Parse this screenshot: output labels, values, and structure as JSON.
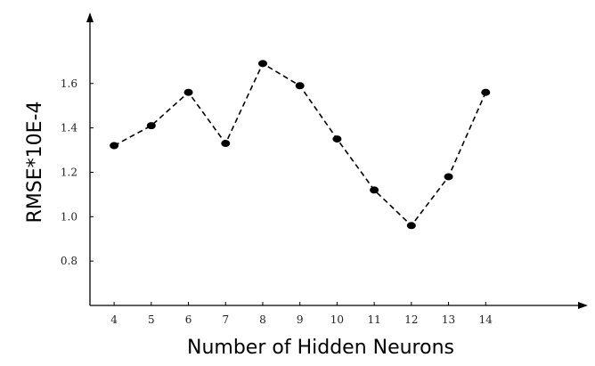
{
  "chart_data": {
    "type": "line",
    "title": "",
    "xlabel": "Number of Hidden Neurons",
    "ylabel": "RMSE*10E-4",
    "x": [
      4,
      5,
      6,
      7,
      8,
      9,
      10,
      11,
      12,
      13,
      14
    ],
    "series": [
      {
        "values": [
          1.32,
          1.41,
          1.56,
          1.33,
          1.69,
          1.59,
          1.35,
          1.12,
          0.96,
          1.18,
          1.56
        ]
      }
    ],
    "x_ticks": [
      "4",
      "5",
      "6",
      "7",
      "8",
      "9",
      "10",
      "11",
      "12",
      "13",
      "14"
    ],
    "y_ticks": [
      "0.8",
      "1.0",
      "1.2",
      "1.4",
      "1.6"
    ],
    "y_tick_values": [
      0.8,
      1.0,
      1.2,
      1.4,
      1.6
    ],
    "xlim": [
      3.35,
      16.75
    ],
    "ylim": [
      0.6,
      1.92
    ],
    "grid": false,
    "legend": "none",
    "line_style": "dashed",
    "marker": "filled-circle",
    "colors": {
      "line": "#000000",
      "marker": "#000000",
      "axis": "#000000"
    }
  }
}
